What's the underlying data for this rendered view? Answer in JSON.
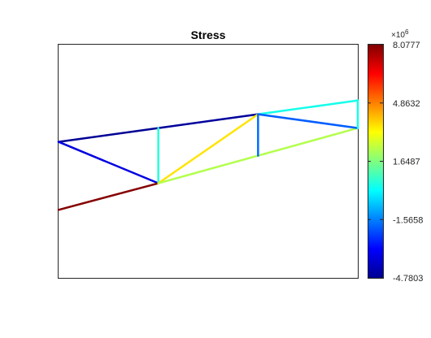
{
  "chart_data": {
    "type": "truss-stress-plot",
    "title": "Stress",
    "axes": {
      "xlim": [
        0,
        3
      ],
      "ylim": [
        -1.4,
        1.0
      ],
      "box": true,
      "ticks_visible": false
    },
    "nodes": [
      {
        "id": "n1",
        "x": 0,
        "y": 0
      },
      {
        "id": "n2",
        "x": 0,
        "y": -0.7
      },
      {
        "id": "n3",
        "x": 1,
        "y": 0.142
      },
      {
        "id": "n4",
        "x": 1,
        "y": -0.426
      },
      {
        "id": "n5",
        "x": 2,
        "y": 0.284
      },
      {
        "id": "n6",
        "x": 2,
        "y": -0.142
      },
      {
        "id": "n7",
        "x": 3,
        "y": 0.426
      },
      {
        "id": "n8",
        "x": 3,
        "y": 0.142
      }
    ],
    "members": [
      {
        "from": "n1",
        "to": "n3",
        "stress": -4.7
      },
      {
        "from": "n3",
        "to": "n5",
        "stress": -4.6
      },
      {
        "from": "n1",
        "to": "n4",
        "stress": -3.6
      },
      {
        "from": "n3",
        "to": "n4",
        "stress": 0.5
      },
      {
        "from": "n2",
        "to": "n4",
        "stress": 8.0
      },
      {
        "from": "n4",
        "to": "n5",
        "stress": 3.6
      },
      {
        "from": "n4",
        "to": "n6",
        "stress": 2.3
      },
      {
        "from": "n6",
        "to": "n8",
        "stress": 2.3
      },
      {
        "from": "n5",
        "to": "n6",
        "stress": -1.8
      },
      {
        "from": "n5",
        "to": "n7",
        "stress": 0.3
      },
      {
        "from": "n5",
        "to": "n8",
        "stress": -2.0
      },
      {
        "from": "n7",
        "to": "n8",
        "stress": 0.3
      }
    ],
    "colorbar": {
      "colormap": "jet",
      "range": [
        -4.7803,
        8.0777
      ],
      "tick_values": [
        8.0777,
        4.8632,
        1.6487,
        -1.5658,
        -4.7803
      ],
      "tick_labels": [
        "8.0777",
        "4.8632",
        "1.6487",
        "-1.5658",
        "-4.7803"
      ],
      "multiplier_base": "×10",
      "multiplier_exponent": "6"
    }
  }
}
